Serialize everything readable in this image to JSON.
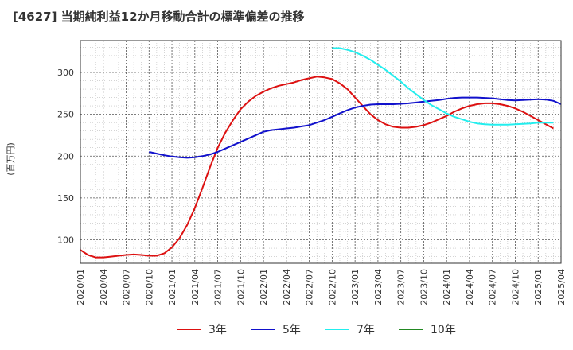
{
  "chart_data": {
    "type": "line",
    "title": "[4627]  当期純利益12か月移動合計の標準偏差の推移",
    "ylabel": "(百万円)",
    "xlabel": "",
    "ylim": [
      72,
      338
    ],
    "yticks": [
      100,
      150,
      200,
      250,
      300
    ],
    "xlim": [
      2020.0,
      2025.25
    ],
    "xticks": [
      "2020/01",
      "2020/04",
      "2020/07",
      "2020/10",
      "2021/01",
      "2021/04",
      "2021/07",
      "2021/10",
      "2022/01",
      "2022/04",
      "2022/07",
      "2022/10",
      "2023/01",
      "2023/04",
      "2023/07",
      "2023/10",
      "2024/01",
      "2024/04",
      "2024/07",
      "2024/10",
      "2025/01",
      "2025/04"
    ],
    "grid": true,
    "legend_position": "bottom",
    "series": [
      {
        "name": "3年",
        "color": "#dd1111",
        "points": [
          [
            2020.0,
            88
          ],
          [
            2020.083,
            82
          ],
          [
            2020.167,
            79
          ],
          [
            2020.25,
            79
          ],
          [
            2020.333,
            80
          ],
          [
            2020.417,
            81
          ],
          [
            2020.5,
            82
          ],
          [
            2020.583,
            82.5
          ],
          [
            2020.667,
            82
          ],
          [
            2020.75,
            81
          ],
          [
            2020.833,
            81
          ],
          [
            2020.917,
            84
          ],
          [
            2021.0,
            91
          ],
          [
            2021.083,
            102
          ],
          [
            2021.167,
            118
          ],
          [
            2021.25,
            138
          ],
          [
            2021.333,
            162
          ],
          [
            2021.417,
            187
          ],
          [
            2021.5,
            210
          ],
          [
            2021.583,
            228
          ],
          [
            2021.667,
            243
          ],
          [
            2021.75,
            256
          ],
          [
            2021.833,
            265
          ],
          [
            2021.917,
            272
          ],
          [
            2022.0,
            277
          ],
          [
            2022.083,
            281
          ],
          [
            2022.167,
            284
          ],
          [
            2022.25,
            286
          ],
          [
            2022.333,
            288
          ],
          [
            2022.417,
            291
          ],
          [
            2022.5,
            293
          ],
          [
            2022.583,
            295
          ],
          [
            2022.667,
            294
          ],
          [
            2022.75,
            292
          ],
          [
            2022.833,
            287
          ],
          [
            2022.917,
            280
          ],
          [
            2023.0,
            270
          ],
          [
            2023.083,
            260
          ],
          [
            2023.167,
            250
          ],
          [
            2023.25,
            243
          ],
          [
            2023.333,
            238
          ],
          [
            2023.417,
            235
          ],
          [
            2023.5,
            234
          ],
          [
            2023.583,
            234
          ],
          [
            2023.667,
            235
          ],
          [
            2023.75,
            237
          ],
          [
            2023.833,
            240
          ],
          [
            2023.917,
            244
          ],
          [
            2024.0,
            248
          ],
          [
            2024.083,
            253
          ],
          [
            2024.167,
            257
          ],
          [
            2024.25,
            260
          ],
          [
            2024.333,
            262
          ],
          [
            2024.417,
            263
          ],
          [
            2024.5,
            263
          ],
          [
            2024.583,
            262
          ],
          [
            2024.667,
            260
          ],
          [
            2024.75,
            257
          ],
          [
            2024.833,
            253
          ],
          [
            2024.917,
            248
          ],
          [
            2025.0,
            243
          ],
          [
            2025.083,
            238
          ],
          [
            2025.167,
            233
          ]
        ]
      },
      {
        "name": "5年",
        "color": "#1111cc",
        "points": [
          [
            2020.75,
            205
          ],
          [
            2020.833,
            203
          ],
          [
            2020.917,
            201
          ],
          [
            2021.0,
            199.5
          ],
          [
            2021.083,
            198.5
          ],
          [
            2021.167,
            198
          ],
          [
            2021.25,
            198.5
          ],
          [
            2021.333,
            200
          ],
          [
            2021.417,
            202
          ],
          [
            2021.5,
            205
          ],
          [
            2021.583,
            209
          ],
          [
            2021.667,
            213
          ],
          [
            2021.75,
            217
          ],
          [
            2021.833,
            221
          ],
          [
            2021.917,
            225
          ],
          [
            2022.0,
            229
          ],
          [
            2022.083,
            231
          ],
          [
            2022.167,
            232
          ],
          [
            2022.25,
            233
          ],
          [
            2022.333,
            234
          ],
          [
            2022.417,
            235.5
          ],
          [
            2022.5,
            237
          ],
          [
            2022.583,
            240
          ],
          [
            2022.667,
            243
          ],
          [
            2022.75,
            247
          ],
          [
            2022.833,
            251
          ],
          [
            2022.917,
            255
          ],
          [
            2023.0,
            258
          ],
          [
            2023.083,
            260
          ],
          [
            2023.167,
            261.5
          ],
          [
            2023.25,
            262
          ],
          [
            2023.333,
            262
          ],
          [
            2023.417,
            262
          ],
          [
            2023.5,
            262.5
          ],
          [
            2023.583,
            263
          ],
          [
            2023.667,
            264
          ],
          [
            2023.75,
            265
          ],
          [
            2023.833,
            266
          ],
          [
            2023.917,
            267
          ],
          [
            2024.0,
            268.5
          ],
          [
            2024.083,
            269.5
          ],
          [
            2024.167,
            270
          ],
          [
            2024.25,
            270
          ],
          [
            2024.333,
            270
          ],
          [
            2024.417,
            269.5
          ],
          [
            2024.5,
            269
          ],
          [
            2024.583,
            268
          ],
          [
            2024.667,
            267
          ],
          [
            2024.75,
            266.5
          ],
          [
            2024.833,
            267
          ],
          [
            2024.917,
            267.5
          ],
          [
            2025.0,
            268
          ],
          [
            2025.083,
            267.5
          ],
          [
            2025.167,
            266
          ],
          [
            2025.25,
            262
          ]
        ]
      },
      {
        "name": "7年",
        "color": "#22eeee",
        "points": [
          [
            2022.75,
            329
          ],
          [
            2022.833,
            329
          ],
          [
            2022.917,
            327
          ],
          [
            2023.0,
            324
          ],
          [
            2023.083,
            320
          ],
          [
            2023.167,
            315
          ],
          [
            2023.25,
            309
          ],
          [
            2023.333,
            303
          ],
          [
            2023.417,
            296
          ],
          [
            2023.5,
            289
          ],
          [
            2023.583,
            281
          ],
          [
            2023.667,
            274
          ],
          [
            2023.75,
            267
          ],
          [
            2023.833,
            261
          ],
          [
            2023.917,
            256
          ],
          [
            2024.0,
            251
          ],
          [
            2024.083,
            247
          ],
          [
            2024.167,
            244
          ],
          [
            2024.25,
            241
          ],
          [
            2024.333,
            239
          ],
          [
            2024.417,
            238
          ],
          [
            2024.5,
            237.5
          ],
          [
            2024.583,
            237.5
          ],
          [
            2024.667,
            237.5
          ],
          [
            2024.75,
            238
          ],
          [
            2024.833,
            238.5
          ],
          [
            2024.917,
            239
          ],
          [
            2025.0,
            240
          ],
          [
            2025.083,
            240
          ],
          [
            2025.167,
            240
          ]
        ]
      },
      {
        "name": "10年",
        "color": "#228822",
        "points": []
      }
    ]
  }
}
